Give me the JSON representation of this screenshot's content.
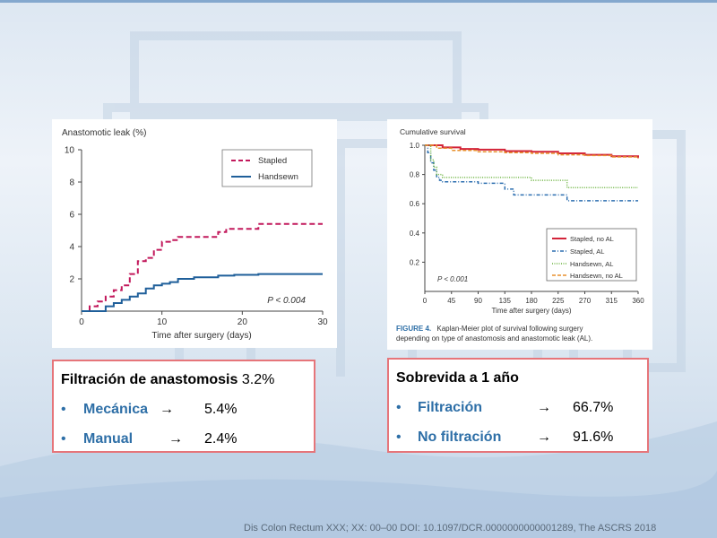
{
  "colors": {
    "stapled": "#c2185b",
    "handsewn": "#1f5f9a",
    "box_border": "#e6757a",
    "accent_text": "#2e6fa7",
    "survival_stapled_no_al": "#d3243a",
    "survival_stapled_al": "#2d6fb0",
    "survival_handsewn_al": "#6cb33f",
    "survival_handsewn_no_al": "#e8912d",
    "figure_caption": "#2e6fa7"
  },
  "chart_data": [
    {
      "type": "line",
      "step": true,
      "title": "Anastomotic leak (%)",
      "xlabel": "Time after surgery (days)",
      "ylabel": "Anastomotic leak (%)",
      "xlim": [
        0,
        30
      ],
      "ylim": [
        0,
        10
      ],
      "xticks": [
        0,
        10,
        20,
        30
      ],
      "yticks": [
        2,
        4,
        6,
        8,
        10
      ],
      "legend_position": "top-right",
      "annotation": "P < 0.004",
      "series": [
        {
          "name": "Stapled",
          "style": "dashed",
          "x": [
            0,
            1,
            2,
            3,
            4,
            5,
            6,
            7,
            8,
            9,
            10,
            11,
            12,
            13,
            14,
            15,
            16,
            17,
            18,
            19,
            20,
            21,
            22,
            30
          ],
          "y": [
            0,
            0.3,
            0.6,
            0.9,
            1.3,
            1.6,
            2.3,
            3.1,
            3.3,
            3.8,
            4.3,
            4.4,
            4.6,
            4.6,
            4.6,
            4.6,
            4.6,
            4.9,
            5.1,
            5.1,
            5.1,
            5.1,
            5.4,
            5.4
          ]
        },
        {
          "name": "Handsewn",
          "style": "solid",
          "x": [
            0,
            3,
            4,
            5,
            6,
            7,
            8,
            9,
            10,
            11,
            12,
            13,
            14,
            15,
            17,
            19,
            22,
            30
          ],
          "y": [
            0,
            0.3,
            0.5,
            0.7,
            0.9,
            1.1,
            1.4,
            1.6,
            1.7,
            1.8,
            2.0,
            2.0,
            2.1,
            2.1,
            2.2,
            2.25,
            2.3,
            2.3
          ]
        }
      ]
    },
    {
      "type": "line",
      "step": true,
      "title": "Cumulative survival",
      "xlabel": "Time after surgery (days)",
      "ylabel": "Cumulative survival",
      "xlim": [
        0,
        360
      ],
      "ylim": [
        0,
        1.0
      ],
      "xticks": [
        0,
        45,
        90,
        135,
        180,
        225,
        270,
        315,
        360
      ],
      "yticks": [
        0.2,
        0.4,
        0.6,
        0.8,
        1.0
      ],
      "legend_position": "bottom-right",
      "annotation": "P < 0.001",
      "caption_label": "FIGURE 4.",
      "caption_text": "Kaplan-Meier plot of survival following surgery depending on type of anastomosis and anastomotic leak (AL).",
      "series": [
        {
          "name": "Stapled, no AL",
          "style": "solid",
          "x": [
            0,
            30,
            60,
            90,
            135,
            180,
            225,
            270,
            315,
            360
          ],
          "y": [
            1.0,
            0.985,
            0.975,
            0.97,
            0.96,
            0.955,
            0.945,
            0.935,
            0.925,
            0.915
          ]
        },
        {
          "name": "Stapled, AL",
          "style": "dashdot",
          "x": [
            0,
            5,
            10,
            15,
            20,
            25,
            30,
            45,
            90,
            135,
            150,
            180,
            225,
            240,
            360
          ],
          "y": [
            1.0,
            0.95,
            0.88,
            0.83,
            0.78,
            0.76,
            0.75,
            0.75,
            0.74,
            0.7,
            0.66,
            0.66,
            0.66,
            0.62,
            0.62
          ]
        },
        {
          "name": "Handsewn, AL",
          "style": "dotted",
          "x": [
            0,
            10,
            15,
            20,
            30,
            90,
            135,
            180,
            210,
            240,
            360
          ],
          "y": [
            1.0,
            0.9,
            0.85,
            0.8,
            0.78,
            0.78,
            0.78,
            0.76,
            0.76,
            0.71,
            0.71
          ]
        },
        {
          "name": "Handsewn, no AL",
          "style": "dashed",
          "x": [
            0,
            20,
            45,
            90,
            135,
            180,
            225,
            270,
            315,
            360
          ],
          "y": [
            1.0,
            0.98,
            0.965,
            0.955,
            0.95,
            0.945,
            0.935,
            0.93,
            0.92,
            0.91
          ]
        }
      ]
    }
  ],
  "leak_box": {
    "title": "Filtración  de anastomosis",
    "title_value": "3.2%",
    "items": [
      {
        "bullet": "•",
        "label": "Mecánica",
        "arrow": "→",
        "value": "5.4%"
      },
      {
        "bullet": "•",
        "label": "Manual",
        "arrow": "→",
        "value": "2.4%"
      }
    ]
  },
  "survival_box": {
    "title": "Sobrevida a 1 año",
    "items": [
      {
        "bullet": "•",
        "label": "Filtración",
        "arrow": "→",
        "value": "66.7%"
      },
      {
        "bullet": "•",
        "label": "No filtración",
        "arrow": "→",
        "value": "91.6%"
      }
    ]
  },
  "citation": "Dis Colon Rectum XXX; XX: 00–00  DOI: 10.1097/DCR.0000000000001289, The ASCRS 2018"
}
